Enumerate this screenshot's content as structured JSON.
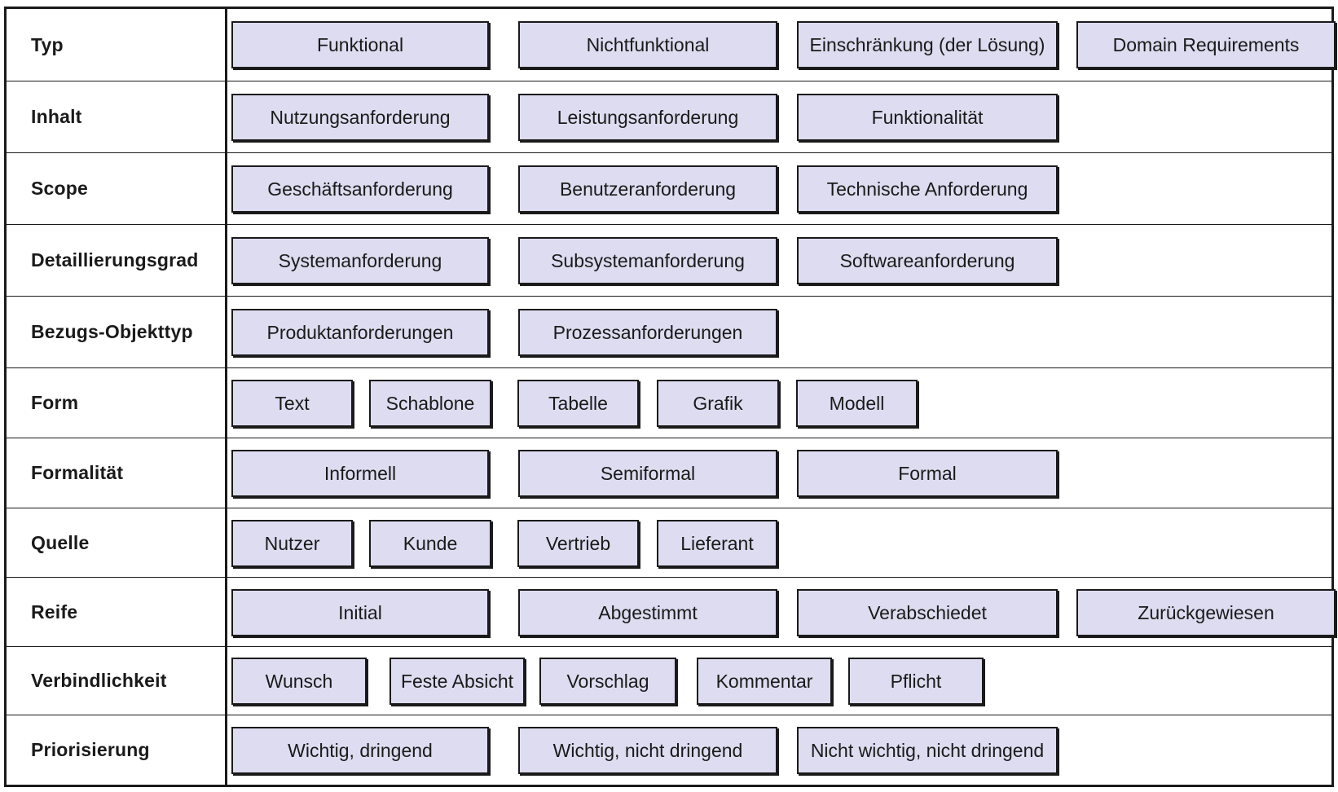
{
  "rows": [
    {
      "category": "Typ",
      "items": [
        "Funktional",
        "Nichtfunktional",
        "Einschränkung (der Lösung)",
        "Domain Requirements"
      ]
    },
    {
      "category": "Inhalt",
      "items": [
        "Nutzungsanforderung",
        "Leistungsanforderung",
        "Funktionalität"
      ]
    },
    {
      "category": "Scope",
      "items": [
        "Geschäftsanforderung",
        "Benutzeranforderung",
        "Technische Anforderung"
      ]
    },
    {
      "category": "Detaillierungsgrad",
      "items": [
        "Systemanforderung",
        "Subsystemanforderung",
        "Softwareanforderung"
      ]
    },
    {
      "category": "Bezugs-Objekttyp",
      "items": [
        "Produktanforderungen",
        "Prozessanforderungen"
      ]
    },
    {
      "category": "Form",
      "items": [
        "Text",
        "Schablone",
        "Tabelle",
        "Grafik",
        "Modell"
      ]
    },
    {
      "category": "Formalität",
      "items": [
        "Informell",
        "Semiformal",
        "Formal"
      ]
    },
    {
      "category": "Quelle",
      "items": [
        "Nutzer",
        "Kunde",
        "Vertrieb",
        "Lieferant"
      ]
    },
    {
      "category": "Reife",
      "items": [
        "Initial",
        "Abgestimmt",
        "Verabschiedet",
        "Zurückgewiesen"
      ]
    },
    {
      "category": "Verbindlichkeit",
      "items": [
        "Wunsch",
        "Feste Absicht",
        "Vorschlag",
        "Kommentar",
        "Pflicht"
      ]
    },
    {
      "category": "Priorisierung",
      "items": [
        "Wichtig, dringend",
        "Wichtig, nicht dringend",
        "Nicht wichtig, nicht dringend"
      ]
    }
  ],
  "colors": {
    "box_fill": "#dddcf0",
    "line": "#1a1a1a"
  }
}
